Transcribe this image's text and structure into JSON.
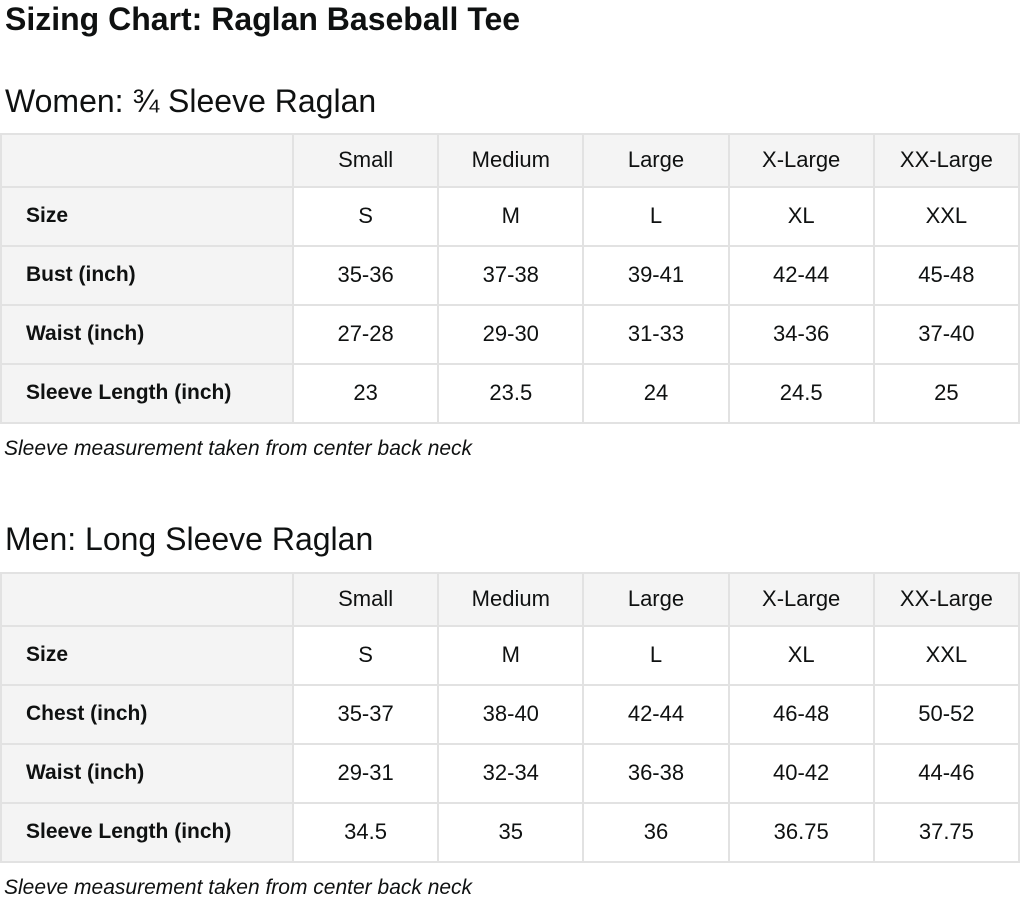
{
  "page": {
    "title": "Sizing Chart: Raglan Baseball Tee"
  },
  "colors": {
    "header_cell_background": "#f4f4f4",
    "table_border": "#e2e2e2",
    "text": "#0f1111"
  },
  "sections": [
    {
      "heading": "Women: ¾ Sleeve Raglan",
      "note": "Sleeve measurement taken from center back neck",
      "table": {
        "columns": [
          "",
          "Small",
          "Medium",
          "Large",
          "X-Large",
          "XX-Large"
        ],
        "rows": [
          {
            "label": "Size",
            "values": [
              "S",
              "M",
              "L",
              "XL",
              "XXL"
            ]
          },
          {
            "label": "Bust (inch)",
            "values": [
              "35-36",
              "37-38",
              "39-41",
              "42-44",
              "45-48"
            ]
          },
          {
            "label": "Waist (inch)",
            "values": [
              "27-28",
              "29-30",
              "31-33",
              "34-36",
              "37-40"
            ]
          },
          {
            "label": "Sleeve Length (inch)",
            "values": [
              "23",
              "23.5",
              "24",
              "24.5",
              "25"
            ]
          }
        ]
      }
    },
    {
      "heading": "Men: Long Sleeve Raglan",
      "note": "Sleeve measurement taken from center back neck",
      "table": {
        "columns": [
          "",
          "Small",
          "Medium",
          "Large",
          "X-Large",
          "XX-Large"
        ],
        "rows": [
          {
            "label": "Size",
            "values": [
              "S",
              "M",
              "L",
              "XL",
              "XXL"
            ]
          },
          {
            "label": "Chest (inch)",
            "values": [
              "35-37",
              "38-40",
              "42-44",
              "46-48",
              "50-52"
            ]
          },
          {
            "label": "Waist (inch)",
            "values": [
              "29-31",
              "32-34",
              "36-38",
              "40-42",
              "44-46"
            ]
          },
          {
            "label": "Sleeve Length (inch)",
            "values": [
              "34.5",
              "35",
              "36",
              "36.75",
              "37.75"
            ]
          }
        ]
      }
    }
  ]
}
